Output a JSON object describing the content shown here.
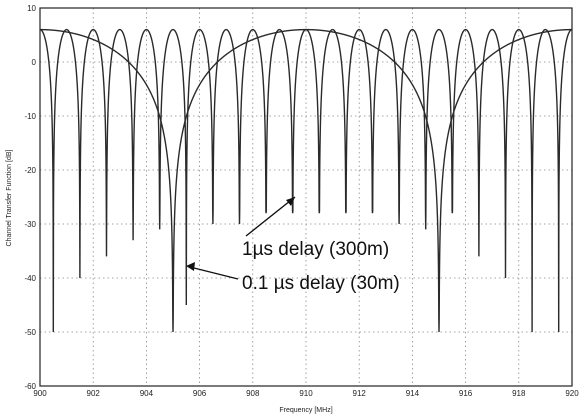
{
  "chart_data": {
    "type": "line",
    "title": "",
    "xlabel": "Frequency [MHz]",
    "ylabel": "Channel Transfer Function [dB]",
    "xlim": [
      900,
      920
    ],
    "ylim": [
      -60,
      10
    ],
    "xticks": [
      900,
      902,
      904,
      906,
      908,
      910,
      912,
      914,
      916,
      918,
      920
    ],
    "yticks": [
      10,
      0,
      -10,
      -20,
      -30,
      -40,
      -50,
      -60
    ],
    "grid": true,
    "series": [
      {
        "name": "1µs delay (300m)",
        "delay_us": 1,
        "peak_db": 6,
        "null_db": -50,
        "null_spacing_mhz": 1,
        "first_null_mhz": 900.5,
        "x": [
          900,
          900.5,
          901,
          901.5,
          902,
          902.5,
          903,
          903.5,
          904,
          904.5,
          905,
          905.5,
          906,
          906.5,
          907,
          907.5,
          908,
          908.5,
          909,
          909.5,
          910,
          910.5,
          911,
          911.5,
          912,
          912.5,
          913,
          913.5,
          914,
          914.5,
          915,
          915.5,
          916,
          916.5,
          917,
          917.5,
          918,
          918.5,
          919,
          919.5,
          920
        ],
        "y": [
          6,
          -50,
          6,
          -40,
          6,
          -36,
          6,
          -33,
          6,
          -31,
          6,
          -45,
          6,
          -30,
          6,
          -30,
          6,
          -28,
          6,
          -28,
          6,
          -28,
          6,
          -28,
          6,
          -28,
          6,
          -30,
          6,
          -31,
          6,
          -28,
          6,
          -36,
          6,
          -40,
          6,
          -50,
          6,
          -50,
          6
        ]
      },
      {
        "name": "0.1 µs delay (30m)",
        "delay_us": 0.1,
        "peak_db": 6,
        "null_db": -50,
        "null_spacing_mhz": 10,
        "first_null_mhz": 905,
        "x": [
          900,
          905,
          910,
          915,
          920
        ],
        "y": [
          6,
          -50,
          6,
          -50,
          6
        ]
      }
    ],
    "annotations": [
      {
        "text": "1µs delay (300m)",
        "points_to": [
          909.5,
          -24
        ]
      },
      {
        "text": "0.1 µs delay (30m)",
        "points_to": [
          905,
          -38
        ]
      }
    ]
  }
}
